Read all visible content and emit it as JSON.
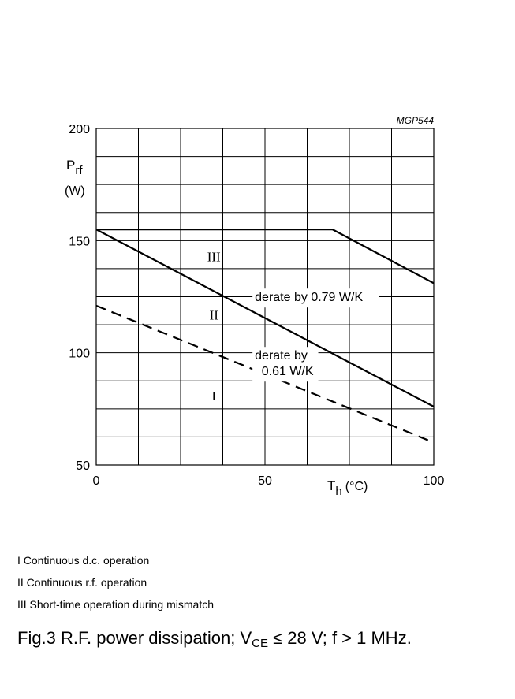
{
  "chart_data": {
    "type": "line",
    "code": "MGP544",
    "xlabel": {
      "main": "T",
      "sub": "h",
      "unit": "(°C)"
    },
    "ylabel": {
      "main": "P",
      "sub": "rf",
      "unit": "(W)"
    },
    "xlim": [
      0,
      100
    ],
    "ylim": [
      50,
      200
    ],
    "x_ticks": [
      0,
      50,
      100
    ],
    "y_ticks": [
      50,
      100,
      150,
      200
    ],
    "grid": true,
    "grid_x_step": 12.5,
    "grid_y_step": 12.5,
    "series": [
      {
        "id": "III",
        "style": "solid",
        "points": [
          [
            0,
            155
          ],
          [
            70,
            155
          ],
          [
            100,
            131
          ]
        ]
      },
      {
        "id": "II",
        "style": "solid",
        "points": [
          [
            0,
            155
          ],
          [
            100,
            76
          ]
        ]
      },
      {
        "id": "I",
        "style": "dashed",
        "points": [
          [
            0,
            121
          ],
          [
            100,
            60
          ]
        ]
      }
    ],
    "region_labels": [
      {
        "text": "III",
        "x": 33,
        "y": 143
      },
      {
        "text": "II",
        "x": 33,
        "y": 117
      },
      {
        "text": "I",
        "x": 33,
        "y": 81
      }
    ],
    "annotations": [
      {
        "lines": [
          "derate by 0.79 W/K"
        ],
        "x": 47,
        "y": 123
      },
      {
        "lines": [
          "derate by",
          "0.61 W/K"
        ],
        "x": 47,
        "y": 97
      }
    ]
  },
  "legend": [
    "I   Continuous d.c. operation",
    "II  Continuous r.f. operation",
    "III Short-time operation during mismatch"
  ],
  "caption": {
    "prefix": "Fig.3  R.F. power dissipation; V",
    "sub": "CE",
    "suffix": " ≤ 28 V; f > 1 MHz."
  }
}
